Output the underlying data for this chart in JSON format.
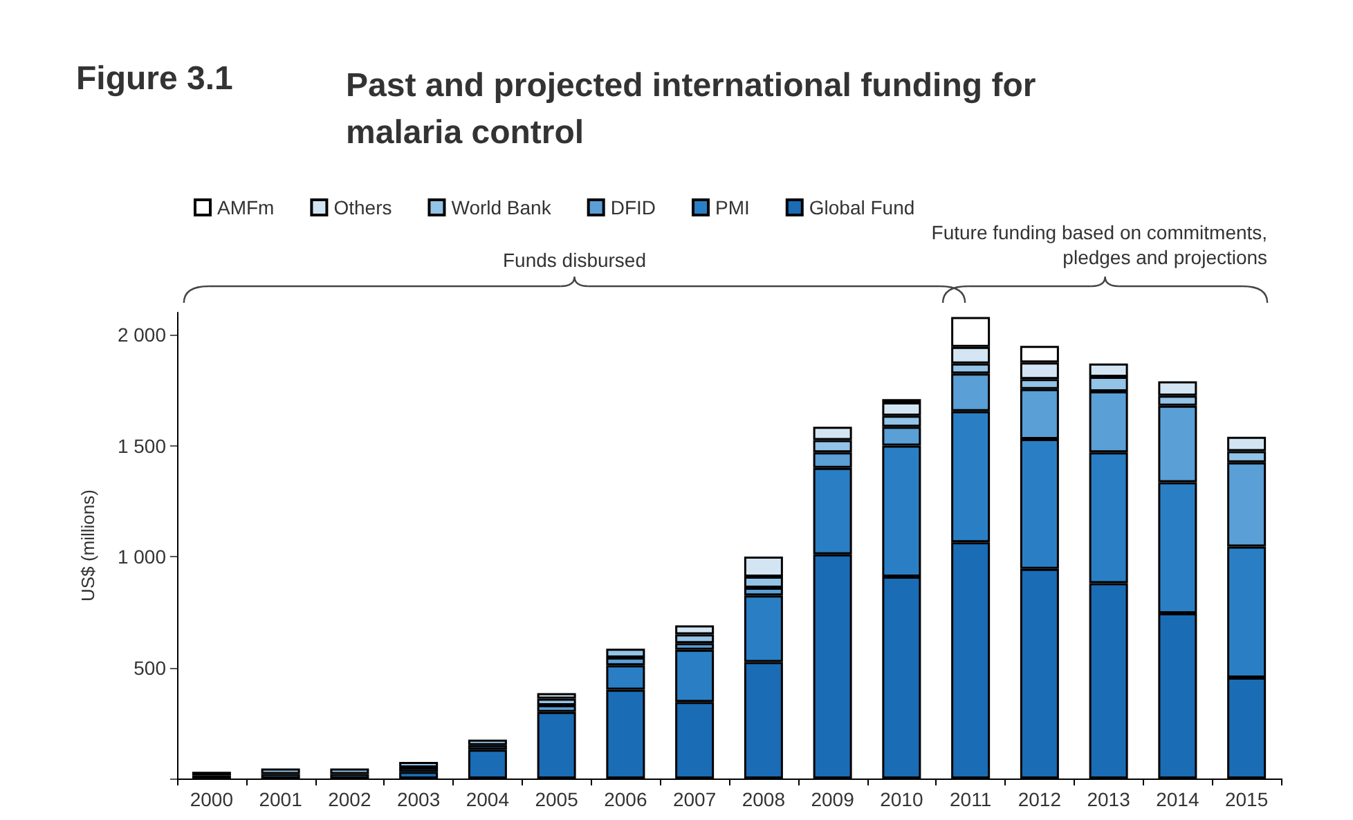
{
  "chart_data": {
    "type": "bar",
    "stacked": true,
    "title": "Figure 3.1",
    "subtitle": "Past and projected international funding for malaria control",
    "ylabel": "US$ (millions)",
    "annotations": [
      "Funds disbursed",
      "Future funding based on commitments, pledges and projections"
    ],
    "categories": [
      "2000",
      "2001",
      "2002",
      "2003",
      "2004",
      "2005",
      "2006",
      "2007",
      "2008",
      "2009",
      "2010",
      "2011",
      "2012",
      "2013",
      "2014",
      "2015"
    ],
    "series": [
      {
        "name": "Global Fund",
        "color": "#1a6cb5",
        "values": [
          null,
          null,
          null,
          30,
          130,
          300,
          400,
          345,
          525,
          1010,
          910,
          1065,
          945,
          880,
          745,
          455
        ]
      },
      {
        "name": "PMI",
        "color": "#2a7fc4",
        "values": [
          null,
          null,
          null,
          null,
          null,
          null,
          110,
          235,
          300,
          390,
          590,
          590,
          585,
          590,
          590,
          590
        ]
      },
      {
        "name": "DFID",
        "color": "#5a9fd6",
        "values": [
          15,
          20,
          20,
          20,
          20,
          30,
          35,
          30,
          35,
          70,
          85,
          170,
          225,
          275,
          345,
          380
        ]
      },
      {
        "name": "World Bank",
        "color": "#93c3e6",
        "values": [
          15,
          25,
          25,
          25,
          25,
          30,
          40,
          40,
          50,
          55,
          50,
          45,
          45,
          65,
          45,
          50
        ]
      },
      {
        "name": "Others",
        "color": "#d3e5f2",
        "values": [
          null,
          null,
          null,
          null,
          null,
          25,
          null,
          40,
          90,
          60,
          60,
          75,
          75,
          60,
          65,
          65
        ]
      },
      {
        "name": "AMFm",
        "color": "#ffffff",
        "values": [
          null,
          null,
          null,
          null,
          null,
          null,
          null,
          null,
          null,
          null,
          15,
          135,
          75,
          null,
          null,
          null
        ]
      }
    ],
    "ylim": [
      0,
      2100
    ],
    "yticks": [
      {
        "value": 0,
        "label": null
      },
      {
        "value": 500,
        "label": "500"
      },
      {
        "value": 1000,
        "label": "1 000"
      },
      {
        "value": 1500,
        "label": "1 500"
      },
      {
        "value": 2000,
        "label": "2 000"
      }
    ],
    "grid": false,
    "legend": "top left"
  }
}
